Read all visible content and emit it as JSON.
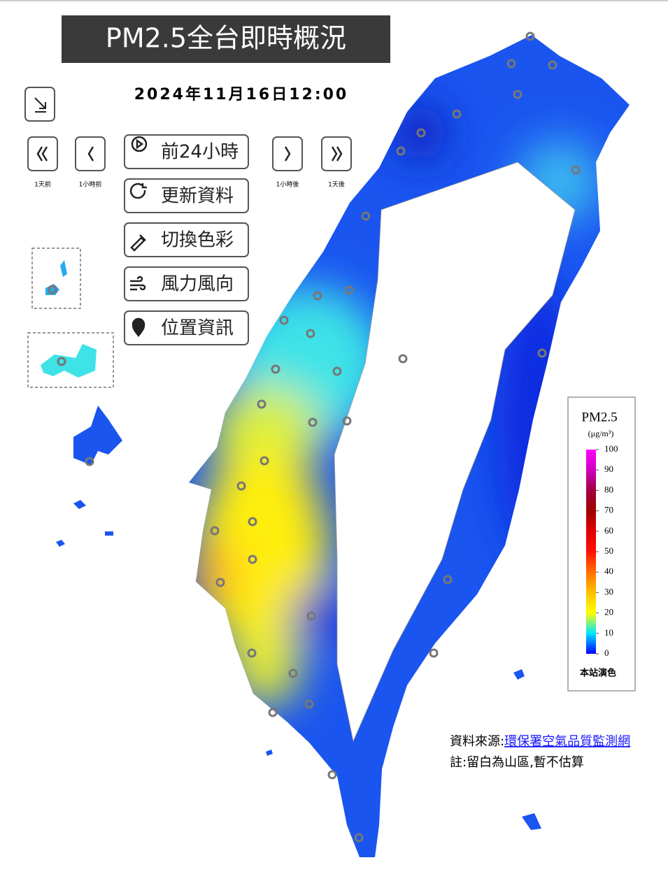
{
  "header": {
    "title": "PM2.5全台即時概況",
    "datetime": "2024年11月16日12:00"
  },
  "controls": {
    "nav_labels": [
      "1天前",
      "1小時前",
      "1小時後",
      "1天後"
    ],
    "buttons": [
      "前24小時",
      "更新資料",
      "切換色彩",
      "風力風向",
      "位置資訊"
    ]
  },
  "legend": {
    "title": "PM2.5",
    "unit": "(μg/m³)",
    "lim": [
      0,
      100
    ],
    "ticks": [
      0,
      10,
      20,
      30,
      40,
      50,
      60,
      70,
      80,
      90,
      100
    ],
    "colors": [
      "#0000ff",
      "#00e5ff",
      "#ffff00",
      "#ffc000",
      "#ff7000",
      "#ff1000",
      "#e00000",
      "#a00000",
      "#a00040",
      "#d000c0",
      "#ff00ff"
    ],
    "footer": "本站演色"
  },
  "footer": {
    "source_label": "資料來源:",
    "source_link": "環保署空氣品質監測網",
    "note": "註:留白為山區,暫不估算"
  }
}
